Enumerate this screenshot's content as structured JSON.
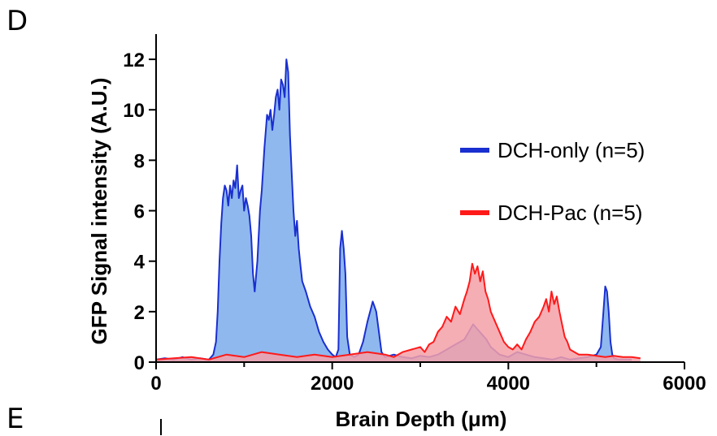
{
  "panel_labels": {
    "top": "D",
    "bottom": "E"
  },
  "colors": {
    "blue_line": "#1a2fd0",
    "blue_fill": "#8fb8ee",
    "red_line": "#ff1a1a",
    "red_fill": "#f4a0a8",
    "axis": "#000000"
  },
  "chart_data": {
    "type": "area",
    "xlabel": "Brain Depth (μm)",
    "ylabel": "GFP Signal intensity (A.U.)",
    "xlim": [
      0,
      6000
    ],
    "ylim": [
      0,
      13
    ],
    "xticks": [
      0,
      2000,
      4000,
      6000
    ],
    "yticks": [
      0,
      2,
      4,
      6,
      8,
      10,
      12
    ],
    "x_minor_ticks": [
      1000,
      3000,
      5000
    ],
    "grid": false,
    "legend_position": "right",
    "series": [
      {
        "name": "DCH-only (n=5)",
        "color": "#1a2fd0",
        "x": [
          0,
          100,
          200,
          300,
          400,
          500,
          600,
          650,
          680,
          700,
          720,
          740,
          760,
          780,
          800,
          820,
          840,
          860,
          880,
          900,
          920,
          940,
          960,
          980,
          1000,
          1020,
          1040,
          1060,
          1080,
          1100,
          1120,
          1150,
          1180,
          1200,
          1230,
          1260,
          1280,
          1300,
          1320,
          1340,
          1360,
          1380,
          1400,
          1420,
          1440,
          1460,
          1480,
          1500,
          1520,
          1540,
          1560,
          1580,
          1600,
          1620,
          1640,
          1660,
          1700,
          1750,
          1800,
          1850,
          1900,
          1950,
          2000,
          2040,
          2070,
          2090,
          2110,
          2130,
          2150,
          2170,
          2200,
          2250,
          2300,
          2350,
          2400,
          2430,
          2460,
          2480,
          2500,
          2530,
          2560,
          2600,
          2700,
          2800,
          2900,
          3000,
          3100,
          3200,
          3300,
          3400,
          3500,
          3550,
          3600,
          3650,
          3700,
          3750,
          3800,
          3900,
          4000,
          4100,
          4200,
          4300,
          4400,
          4500,
          4600,
          4700,
          4800,
          4900,
          5000,
          5050,
          5080,
          5100,
          5120,
          5140,
          5160,
          5180,
          5200,
          5250,
          5300,
          5400
        ],
        "y": [
          0.1,
          0.15,
          0.1,
          0.2,
          0.1,
          0.15,
          0.1,
          0.3,
          0.8,
          2.0,
          4.0,
          5.5,
          6.5,
          7.0,
          6.8,
          6.2,
          7.0,
          6.5,
          7.2,
          6.9,
          7.8,
          6.5,
          6.8,
          7.0,
          6.0,
          6.5,
          6.2,
          5.8,
          5.0,
          3.5,
          2.8,
          4.0,
          6.0,
          6.8,
          8.5,
          9.8,
          9.6,
          10.0,
          9.2,
          9.8,
          10.5,
          10.8,
          10.0,
          11.2,
          11.0,
          10.5,
          12.0,
          11.5,
          9.0,
          7.5,
          6.0,
          5.0,
          5.6,
          4.5,
          3.8,
          3.2,
          2.8,
          2.2,
          1.8,
          1.2,
          0.8,
          0.5,
          0.3,
          0.2,
          0.5,
          4.5,
          5.2,
          4.5,
          3.5,
          1.0,
          0.3,
          0.2,
          0.3,
          0.8,
          1.6,
          2.0,
          2.4,
          2.2,
          2.0,
          1.2,
          0.4,
          0.2,
          0.3,
          0.2,
          0.15,
          0.25,
          0.2,
          0.3,
          0.5,
          0.7,
          0.9,
          1.2,
          1.5,
          1.3,
          1.1,
          0.9,
          0.6,
          0.3,
          0.2,
          0.4,
          0.3,
          0.2,
          0.15,
          0.1,
          0.2,
          0.1,
          0.15,
          0.2,
          0.3,
          0.6,
          2.0,
          3.0,
          2.8,
          2.0,
          0.8,
          0.3,
          0.15,
          0.1,
          0.1,
          0.1
        ]
      },
      {
        "name": "DCH-Pac (n=5)",
        "color": "#ff1a1a",
        "x": [
          0,
          200,
          400,
          600,
          800,
          1000,
          1200,
          1400,
          1600,
          1800,
          2000,
          2200,
          2400,
          2600,
          2700,
          2800,
          2900,
          3000,
          3050,
          3100,
          3150,
          3200,
          3250,
          3300,
          3350,
          3400,
          3450,
          3500,
          3530,
          3560,
          3590,
          3620,
          3650,
          3680,
          3710,
          3740,
          3770,
          3800,
          3850,
          3900,
          3950,
          4000,
          4050,
          4100,
          4150,
          4200,
          4250,
          4300,
          4350,
          4400,
          4430,
          4460,
          4490,
          4520,
          4550,
          4580,
          4610,
          4640,
          4670,
          4700,
          4800,
          4900,
          5000,
          5100,
          5200,
          5300,
          5400,
          5500
        ],
        "y": [
          0.1,
          0.15,
          0.2,
          0.1,
          0.3,
          0.2,
          0.4,
          0.3,
          0.2,
          0.3,
          0.2,
          0.3,
          0.4,
          0.3,
          0.2,
          0.4,
          0.5,
          0.6,
          0.4,
          0.7,
          0.8,
          1.2,
          1.4,
          1.8,
          1.6,
          2.2,
          1.9,
          2.5,
          2.8,
          3.2,
          3.9,
          3.5,
          3.8,
          3.2,
          3.6,
          2.8,
          2.5,
          2.0,
          1.6,
          1.2,
          0.8,
          0.6,
          0.5,
          0.7,
          0.5,
          0.9,
          1.2,
          1.6,
          1.8,
          2.2,
          2.5,
          2.0,
          2.8,
          2.3,
          2.6,
          2.0,
          1.5,
          1.0,
          0.8,
          0.5,
          0.3,
          0.3,
          0.25,
          0.2,
          0.25,
          0.2,
          0.2,
          0.15
        ]
      }
    ]
  }
}
